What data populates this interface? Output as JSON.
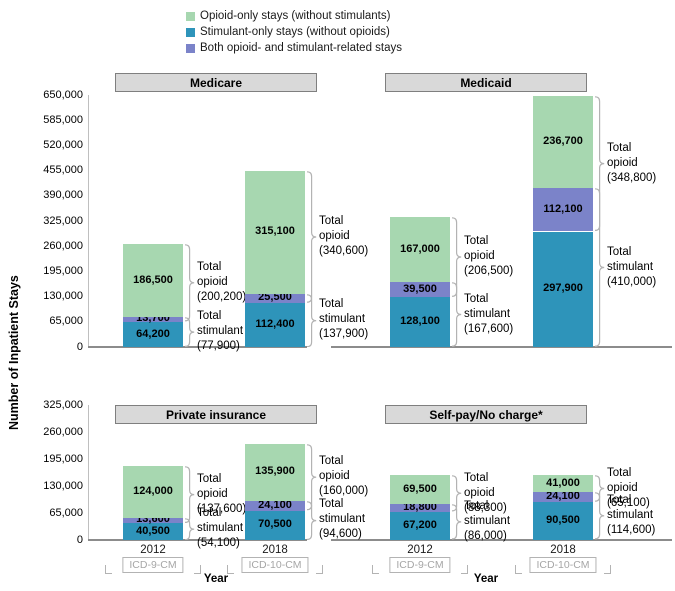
{
  "legend": {
    "items": [
      {
        "key": "opioid_only",
        "label": "Opioid-only stays (without stimulants)",
        "color": "#a7d7b0"
      },
      {
        "key": "stimulant_only",
        "label": "Stimulant-only stays (without opioids)",
        "color": "#2e94ba"
      },
      {
        "key": "both",
        "label": "Both opioid- and stimulant-related stays",
        "color": "#7b83c9"
      }
    ]
  },
  "axes": {
    "y_title": "Number of Inpatient Stays",
    "x_title": "Year"
  },
  "annotation_labels": {
    "total_opioid": "Total opioid",
    "total_stimulant": "Total stimulant"
  },
  "chart_data": {
    "type": "bar",
    "stacked": true,
    "stack_order_bottom_to_top": [
      "stimulant_only",
      "both",
      "opioid_only"
    ],
    "rows": [
      {
        "id": "top",
        "ylim": [
          0,
          650000
        ],
        "ytick_step": 65000,
        "yticks": [
          0,
          65000,
          130000,
          195000,
          260000,
          325000,
          390000,
          455000,
          520000,
          585000,
          650000
        ]
      },
      {
        "id": "bottom",
        "ylim": [
          0,
          325000
        ],
        "ytick_step": 65000,
        "yticks": [
          0,
          65000,
          130000,
          195000,
          260000,
          325000
        ]
      }
    ],
    "panels": [
      {
        "title": "Medicare",
        "row": "top",
        "side": "left",
        "bars": [
          {
            "year": "2012",
            "code": "ICD-9-CM",
            "values": {
              "opioid_only": 186500,
              "both": 13700,
              "stimulant_only": 64200
            },
            "total_opioid": 200200,
            "total_stimulant": 77900
          },
          {
            "year": "2018",
            "code": "ICD-10-CM",
            "values": {
              "opioid_only": 315100,
              "both": 25500,
              "stimulant_only": 112400
            },
            "total_opioid": 340600,
            "total_stimulant": 137900
          }
        ]
      },
      {
        "title": "Medicaid",
        "row": "top",
        "side": "right",
        "bars": [
          {
            "year": "2012",
            "code": "ICD-9-CM",
            "values": {
              "opioid_only": 167000,
              "both": 39500,
              "stimulant_only": 128100
            },
            "total_opioid": 206500,
            "total_stimulant": 167600
          },
          {
            "year": "2018",
            "code": "ICD-10-CM",
            "values": {
              "opioid_only": 236700,
              "both": 112100,
              "stimulant_only": 297900
            },
            "total_opioid": 348800,
            "total_stimulant": 410000
          }
        ]
      },
      {
        "title": "Private insurance",
        "row": "bottom",
        "side": "left",
        "bars": [
          {
            "year": "2012",
            "code": "ICD-9-CM",
            "values": {
              "opioid_only": 124000,
              "both": 13600,
              "stimulant_only": 40500
            },
            "total_opioid": 137600,
            "total_stimulant": 54100
          },
          {
            "year": "2018",
            "code": "ICD-10-CM",
            "values": {
              "opioid_only": 135900,
              "both": 24100,
              "stimulant_only": 70500
            },
            "total_opioid": 160000,
            "total_stimulant": 94600
          }
        ]
      },
      {
        "title": "Self-pay/No charge*",
        "row": "bottom",
        "side": "right",
        "bars": [
          {
            "year": "2012",
            "code": "ICD-9-CM",
            "values": {
              "opioid_only": 69500,
              "both": 18800,
              "stimulant_only": 67200
            },
            "total_opioid": 88300,
            "total_stimulant": 86000
          },
          {
            "year": "2018",
            "code": "ICD-10-CM",
            "values": {
              "opioid_only": 41000,
              "both": 24100,
              "stimulant_only": 90500
            },
            "total_opioid": 65100,
            "total_stimulant": 114600
          }
        ]
      }
    ]
  }
}
